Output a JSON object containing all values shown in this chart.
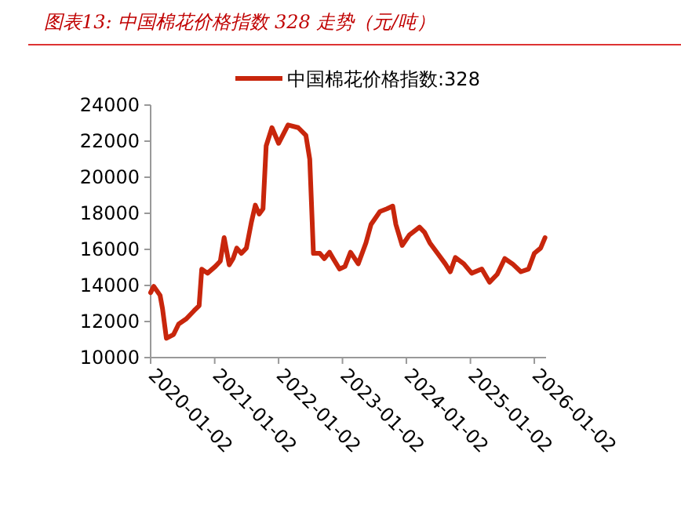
{
  "chart_data": {
    "type": "line",
    "title": "图表13:  中国棉花价格指数 328 走势（元/吨）",
    "x": [
      "2020-01-02",
      "2020-01-20",
      "2020-02-25",
      "2020-03-10",
      "2020-04-01",
      "2020-05-12",
      "2020-06-10",
      "2020-07-24",
      "2020-09-06",
      "2020-10-05",
      "2020-10-20",
      "2020-11-22",
      "2021-01-05",
      "2021-02-03",
      "2021-02-25",
      "2021-03-26",
      "2021-04-17",
      "2021-05-08",
      "2021-06-03",
      "2021-07-02",
      "2021-07-31",
      "2021-08-22",
      "2021-09-13",
      "2021-10-05",
      "2021-10-23",
      "2021-11-25",
      "2022-01-02",
      "2022-02-25",
      "2022-04-24",
      "2022-06-07",
      "2022-06-29",
      "2022-07-20",
      "2022-08-25",
      "2022-09-20",
      "2022-10-20",
      "2022-11-10",
      "2022-12-16",
      "2023-01-16",
      "2023-02-17",
      "2023-04-02",
      "2023-05-16",
      "2023-06-14",
      "2023-08-04",
      "2023-09-13",
      "2023-10-16",
      "2023-11-03",
      "2023-12-09",
      "2024-01-19",
      "2024-03-17",
      "2024-04-15",
      "2024-05-15",
      "2024-06-28",
      "2024-08-11",
      "2024-09-09",
      "2024-10-08",
      "2024-11-25",
      "2025-01-09",
      "2025-03-08",
      "2025-04-21",
      "2025-06-04",
      "2025-07-17",
      "2025-08-30",
      "2025-10-17",
      "2025-11-30",
      "2026-01-02",
      "2026-02-07",
      "2026-03-04"
    ],
    "series": [
      {
        "name": "中国棉花价格指数:328",
        "color": "#c8260c",
        "values": [
          13600,
          13950,
          13450,
          12700,
          11070,
          11280,
          11860,
          12150,
          12600,
          12880,
          14900,
          14680,
          15050,
          15350,
          16650,
          15140,
          15490,
          16070,
          15780,
          16070,
          17520,
          18450,
          17960,
          18250,
          21740,
          22750,
          21880,
          22900,
          22750,
          22320,
          21000,
          15780,
          15780,
          15490,
          15840,
          15490,
          14910,
          15050,
          15840,
          15200,
          16360,
          17380,
          18100,
          18250,
          18400,
          17380,
          16220,
          16800,
          17230,
          16940,
          16360,
          15780,
          15200,
          14760,
          15550,
          15200,
          14680,
          14910,
          14180,
          14620,
          15490,
          15200,
          14760,
          14910,
          15780,
          16070,
          16650
        ]
      }
    ],
    "xlim": [
      "2020-01-02",
      "2026-03-10"
    ],
    "xticks": [
      {
        "value": "2020-01-02",
        "label": "2020-01-02"
      },
      {
        "value": "2021-01-02",
        "label": "2021-01-02"
      },
      {
        "value": "2022-01-02",
        "label": "2022-01-02"
      },
      {
        "value": "2023-01-02",
        "label": "2023-01-02"
      },
      {
        "value": "2024-01-02",
        "label": "2024-01-02"
      },
      {
        "value": "2025-01-02",
        "label": "2025-01-02"
      },
      {
        "value": "2026-01-02",
        "label": "2026-01-02"
      }
    ],
    "ylim": [
      10000,
      24000
    ],
    "yticks": [
      10000,
      12000,
      14000,
      16000,
      18000,
      20000,
      22000,
      24000
    ],
    "grid": false,
    "legend": "top"
  }
}
